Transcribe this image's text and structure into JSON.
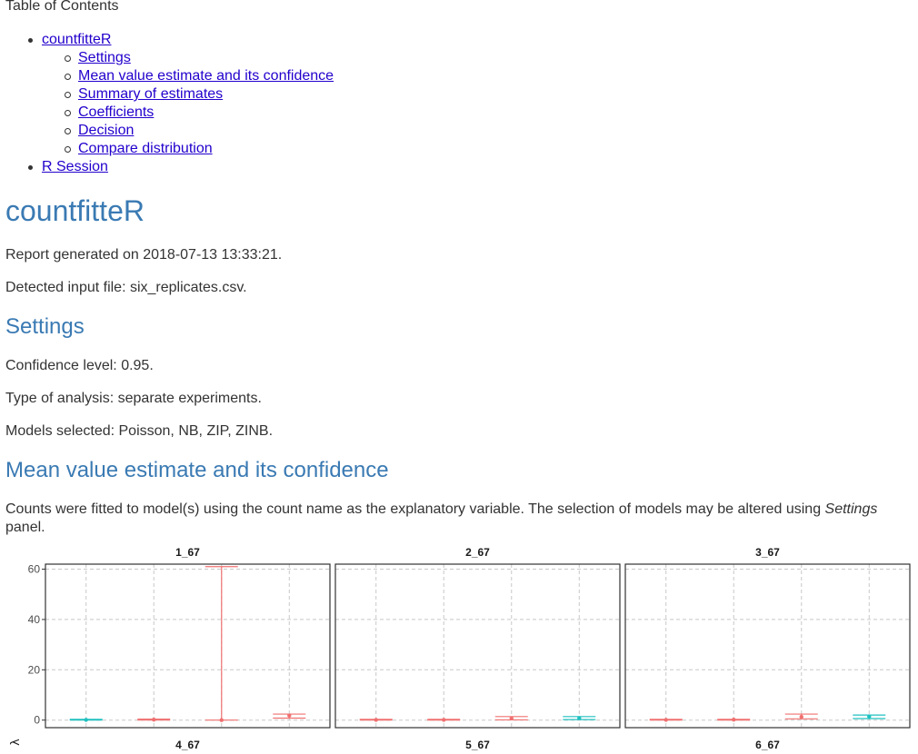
{
  "toc": {
    "title": "Table of Contents",
    "items": [
      {
        "label": "countfitteR",
        "level": 1
      },
      {
        "label": "Settings",
        "level": 2
      },
      {
        "label": "Mean value estimate and its confidence",
        "level": 2
      },
      {
        "label": "Summary of estimates",
        "level": 2
      },
      {
        "label": "Coefficients",
        "level": 2
      },
      {
        "label": "Decision",
        "level": 2
      },
      {
        "label": "Compare distribution",
        "level": 2
      },
      {
        "label": "R Session",
        "level": 1
      }
    ]
  },
  "main": {
    "title": "countfitteR",
    "report_generated": "Report generated on 2018-07-13 13:33:21.",
    "input_file": "Detected input file: six_replicates.csv."
  },
  "settings": {
    "heading": "Settings",
    "confidence": "Confidence level: 0.95.",
    "analysis_type": "Type of analysis: separate experiments.",
    "models": "Models selected: Poisson, NB, ZIP, ZINB."
  },
  "mean_section": {
    "heading": "Mean value estimate and its confidence",
    "text_before": "Counts were fitted to model(s) using the count name as the explanatory variable. The selection of models may be altered using ",
    "text_em": "Settings",
    "text_after": " panel."
  },
  "colors": {
    "accent_heading": "#3a7ab3",
    "link": "#2200cc",
    "series_red": "#f07070",
    "series_teal": "#20c0c0"
  },
  "chart_data": {
    "type": "errorbar",
    "ylabel": "λ",
    "ylim": [
      -3,
      62
    ],
    "yticks": [
      0,
      20,
      40,
      60
    ],
    "grid": true,
    "panels": [
      {
        "title": "1_67",
        "points": [
          {
            "x": 1,
            "y": 0.1,
            "low": 0.0,
            "high": 0.3,
            "color": "teal"
          },
          {
            "x": 2,
            "y": 0.2,
            "low": 0.0,
            "high": 0.4,
            "color": "red"
          },
          {
            "x": 3,
            "y": 0.0,
            "low": 0.0,
            "high": 61.0,
            "color": "red"
          },
          {
            "x": 4,
            "y": 1.8,
            "low": 0.8,
            "high": 2.4,
            "color": "red"
          }
        ]
      },
      {
        "title": "2_67",
        "points": [
          {
            "x": 1,
            "y": 0.1,
            "low": 0.0,
            "high": 0.3,
            "color": "red"
          },
          {
            "x": 2,
            "y": 0.1,
            "low": 0.0,
            "high": 0.3,
            "color": "red"
          },
          {
            "x": 3,
            "y": 0.7,
            "low": 0.1,
            "high": 1.4,
            "color": "red"
          },
          {
            "x": 4,
            "y": 0.8,
            "low": 0.2,
            "high": 1.4,
            "color": "teal"
          }
        ]
      },
      {
        "title": "3_67",
        "points": [
          {
            "x": 1,
            "y": 0.1,
            "low": 0.0,
            "high": 0.3,
            "color": "red"
          },
          {
            "x": 2,
            "y": 0.2,
            "low": 0.0,
            "high": 0.3,
            "color": "red"
          },
          {
            "x": 3,
            "y": 1.3,
            "low": 0.5,
            "high": 2.4,
            "color": "red"
          },
          {
            "x": 4,
            "y": 1.4,
            "low": 0.6,
            "high": 2.0,
            "color": "teal"
          }
        ]
      }
    ],
    "bottom_panel_titles": [
      "4_67",
      "5_67",
      "6_67"
    ]
  }
}
